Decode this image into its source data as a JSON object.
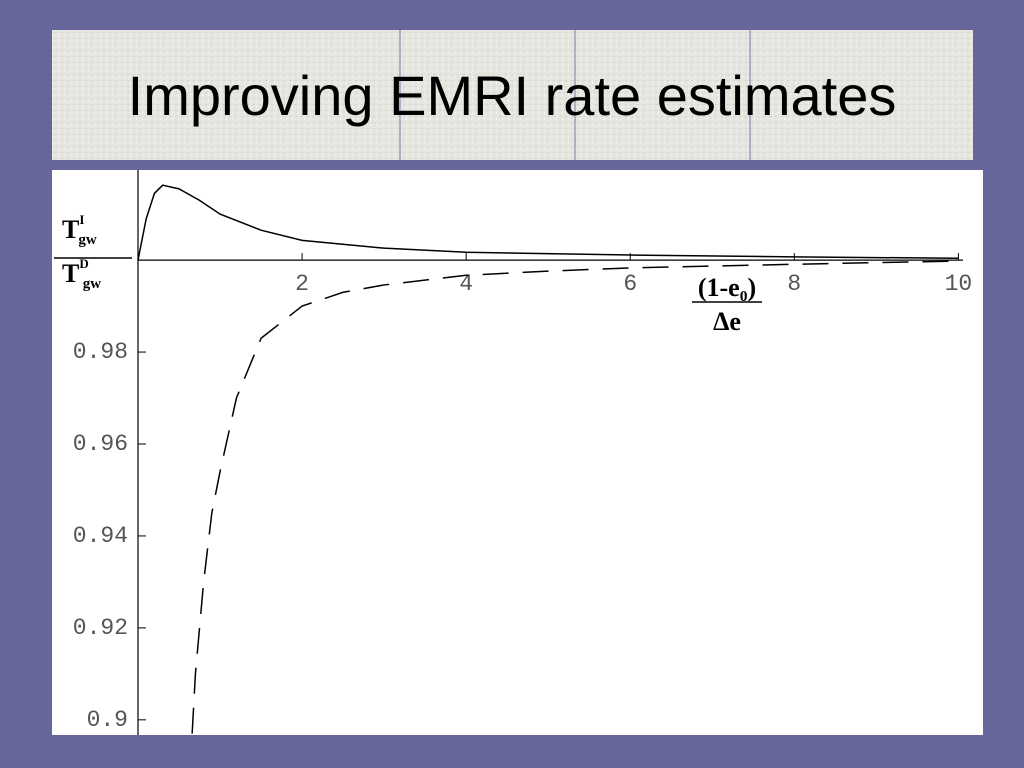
{
  "chart_data": {
    "type": "line",
    "title": "Improving EMRI rate estimates",
    "x_label": {
      "numerator": "(1-e₀)",
      "denominator": "Δe"
    },
    "y_label": {
      "numerator": {
        "base": "T",
        "sup": "I",
        "sub": "gw"
      },
      "denominator": {
        "base": "T",
        "sup": "D",
        "sub": "gw"
      }
    },
    "xlim": [
      0,
      10.3
    ],
    "ylim": [
      0.8967,
      1.0196
    ],
    "xticks": [
      2,
      4,
      6,
      8,
      10
    ],
    "yticks": [
      0.98,
      0.96,
      0.94,
      0.92,
      0.9
    ],
    "x_axis_position": 1,
    "grid": false,
    "series": [
      {
        "color": "#000000",
        "dash": false,
        "x": [
          0,
          0.1,
          0.2,
          0.3,
          0.5,
          0.75,
          1,
          1.5,
          2,
          3,
          4,
          6,
          8,
          10
        ],
        "values": [
          1,
          1.009,
          1.0145,
          1.0163,
          1.0155,
          1.013,
          1.01,
          1.0065,
          1.0043,
          1.0026,
          1.0017,
          1.0011,
          1.0007,
          1.0004
        ]
      },
      {
        "color": "#000000",
        "dash": true,
        "x": [
          0.66,
          0.7,
          0.8,
          0.9,
          1,
          1.2,
          1.5,
          2,
          2.5,
          3,
          4,
          5,
          6,
          8,
          10
        ],
        "values": [
          0.897,
          0.91,
          0.93,
          0.945,
          0.954,
          0.97,
          0.983,
          0.99,
          0.993,
          0.9946,
          0.9967,
          0.9976,
          0.9983,
          0.9991,
          0.9998
        ]
      }
    ]
  }
}
